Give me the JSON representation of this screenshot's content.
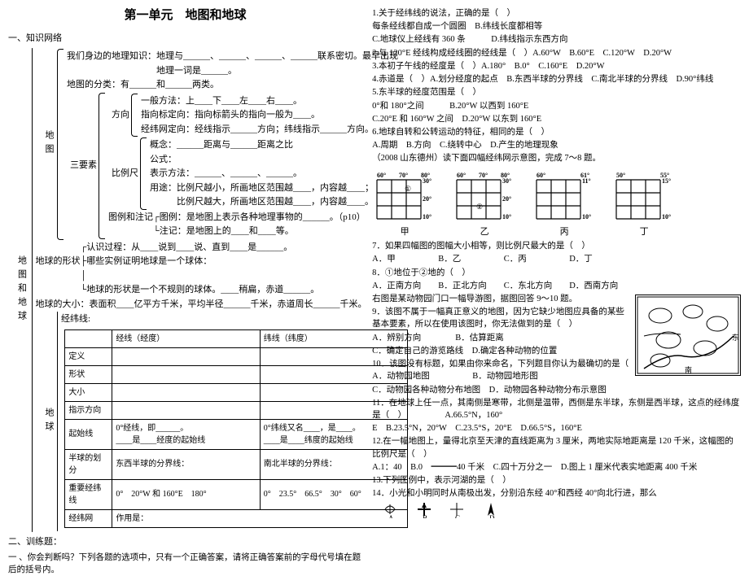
{
  "title": "第一单元　地图和地球",
  "sec1": "一、知识网络",
  "vlabel_main": "地图和地球",
  "vlabel_map": "地图",
  "vlabel_earth": "地球",
  "l01": "我们身边的地理知识：地理与______、______、______、______联系密切。最早出现",
  "l01b": "　　　　　　　　　　地理一词是______。",
  "l02": "地图的分类：有______和______两类。",
  "l03a": "一般方法：上____下____左____右____。",
  "l03b": "指向标定向：指向标箭头的指向一般为____。",
  "l03c": "经纬网定向：经线指示______方向；纬线指示______方向。",
  "l04a": "概念：______距离与______距离之比",
  "l04b": "公式：",
  "l04c": "表示方法：______、______、______。",
  "l04d": "用途：比例尺越小，所画地区范围越____，内容越____；",
  "l04e": "　　　比例尺越大，所画地区范围越____，内容越____。",
  "l05": "图例和注记┌图例：是地图上表示各种地理事物的______。（p10）",
  "l05b": "　　　　　└注记：是地图上的____和____等。",
  "l06a": "　　　　　┌认识过程：从____说到____说、直到____是______。",
  "l06b": "地球的形状├哪些实例证明地球是一个球体：",
  "l06c": "　　　　　│",
  "l06d": "　　　　　└地球的形状是一个不规则的球体。____稍扁，赤道______。",
  "l07": "地球的大小：表面积____亿平方千米，平均半径______千米，赤道周长______千米。",
  "l08": "经纬线:",
  "dir_label": "方向",
  "san_label": "三要素",
  "scale_label": "比例尺",
  "table": {
    "h1": "",
    "h2": "经线（经度）",
    "h3": "纬线（纬度）",
    "r1": "定义",
    "r2": "形状",
    "r3": "大小",
    "r4": "指示方向",
    "r5": "起始线",
    "r5a": "0°经线，即______。",
    "r5b1": "0°纬线又名____，是____。",
    "r5c": "____是____经度的起始线",
    "r5d": "____是____纬度的起始线",
    "r6": "半球的划分",
    "r6a": "东西半球的分界线：",
    "r6b": "南北半球的分界线：",
    "r7": "重要经纬线",
    "r7a": "0°　20°W 和 160°E　180°",
    "r7b": "0°　23.5°　66.5°　30°　60°",
    "r8": "经纬网",
    "r8a": "作用是："
  },
  "sec2": "二、训练题：",
  "sec2b": "一 、你会判断吗？下列各题的选项中，只有一个正确答案，请将正确答案前的字母代号填在题后的括号内。",
  "q1": "1.关于经纬线的说法，正确的是（　）",
  "q1a": "每条经线都自成一个圆圈　B.纬线长度都相等",
  "q1b": "C.地球仪上经线有 360 条　　　D.纬线指示东西方向",
  "q2": "2.与 120°E 经线构成经线圈的经线是（　）A.60°W　B.60°E　C.120°W　D.20°W",
  "q3": "3.本初子午线的经度是（　）A.180°　B.0°　C.160°E　D.20°W",
  "q4": "4.赤道是（　）A.划分经度的起点　B.东西半球的分界线　C.南北半球的分界线　D.90°纬线",
  "q5": "5.东半球的经度范围是（　）",
  "q5a": "0°和 180°之间　　　B.20°W 以西到 160°E",
  "q5b": "C.20°E 和 160°W 之间　D.20°W 以东到 160°E",
  "q6": "6.地球自转和公转运动的特征，相同的是（　）",
  "q6a": "A.周期　B.方向　C.绕转中心　D.产生的地理现象",
  "q7pre": "（2008 山东德州）读下面四幅经纬网示意图，完成 7～8 题。",
  "grid_caps": [
    "甲",
    "乙",
    "丙",
    "丁"
  ],
  "grid1": {
    "top": [
      "60°",
      "70°",
      "80°"
    ],
    "right": [
      "30°",
      "20°",
      "10°"
    ]
  },
  "grid2": {
    "top": [
      "60°",
      "70°",
      "80°"
    ],
    "right": [
      "30°",
      "20°",
      "10°"
    ]
  },
  "grid3": {
    "top": [
      "60°",
      "61°"
    ],
    "right": [
      "11°",
      "10°"
    ]
  },
  "grid4": {
    "top": [
      "50°",
      "55°"
    ],
    "right": [
      "15°",
      "10°"
    ]
  },
  "q7": "7．如果四幅图的图幅大小相等，则比例尺最大的是（　）",
  "q7a": "A．甲　　　　　B．乙　　　　　C．丙　　　　　D．丁",
  "q8": "8．①地位于②地的（　）",
  "q8a": "A．正南方向　　B．正北方向　　C．东北方向　　D．西南方向",
  "q8pre": "右图是某动物园门口一幅导游图，据图回答 9～10 题。",
  "q9": "9．该图不属于一幅真正意义的地图，因为它缺少地图应具备的某些基本要素，所以在使用该图时，你无法做到的是（　）",
  "q9a": "A．辨别方向　　　　B．估算距离",
  "q9b": "C．确定自己的游览路线　D.确定各种动物的位置",
  "q10": "10．该图没有标题，如果由你来命名，下列题目你认为最确切的是（　A．动物园地图　　　　　B．动物园地形图",
  "q10a": "C．动物园各种动物分布地图　D．动物园各种动物分布示意图",
  "q11": "11．在地球上任一点，其南侧是寒带，北侧是温带，西侧是东半球，东侧是西半球，这点的经纬度是（　）　　　　　A.66.5°N，160°",
  "q11a": "E　B.23.5°N，20°W　C.23.5°S，20°E　D.66.5°S，160°E",
  "q12": "12.在一幅地图上，量得北京至天津的直线距离为 3 厘米，两地实际地距离是 120 千米，这幅图的比例尺是（　）",
  "q12a": "A.1：40　B.0　━━━40 千米　C.四十万分之一　D.图上 1 厘米代表实地距离 400 千米",
  "q13": "13.下列图例中，表示河湖的是（　）",
  "q14": "14．小光和小明同时从南极出发，分别沿东经 40°和西经 40°向北行进，那么",
  "compass_labels": [
    "A",
    "B",
    "C",
    "D"
  ]
}
